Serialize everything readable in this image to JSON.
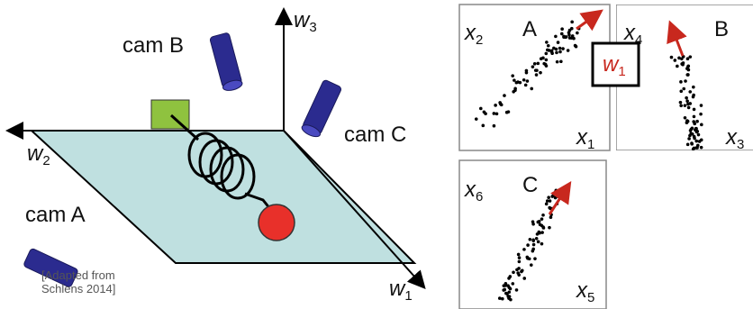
{
  "diagram": {
    "axes": {
      "up": {
        "symbol": "w",
        "subscript": "3"
      },
      "left": {
        "symbol": "w",
        "subscript": "2"
      },
      "diagonal": {
        "symbol": "w",
        "subscript": "1"
      }
    },
    "cameras": {
      "b": "cam B",
      "c": "cam C",
      "a": "cam A"
    },
    "credit": [
      "[Adapted from",
      "Schlens 2014]"
    ]
  },
  "panels": [
    {
      "label": "A",
      "y_axis": {
        "symbol": "x",
        "subscript": "2"
      },
      "x_axis": {
        "symbol": "x",
        "subscript": "1"
      }
    },
    {
      "label": "B",
      "y_axis": {
        "symbol": "x",
        "subscript": "4"
      },
      "x_axis": {
        "symbol": "x",
        "subscript": "3"
      }
    },
    {
      "label": "C",
      "y_axis": {
        "symbol": "x",
        "subscript": "6"
      },
      "x_axis": {
        "symbol": "x",
        "subscript": "5"
      }
    }
  ],
  "highlight": {
    "symbol": "w",
    "subscript": "1"
  }
}
